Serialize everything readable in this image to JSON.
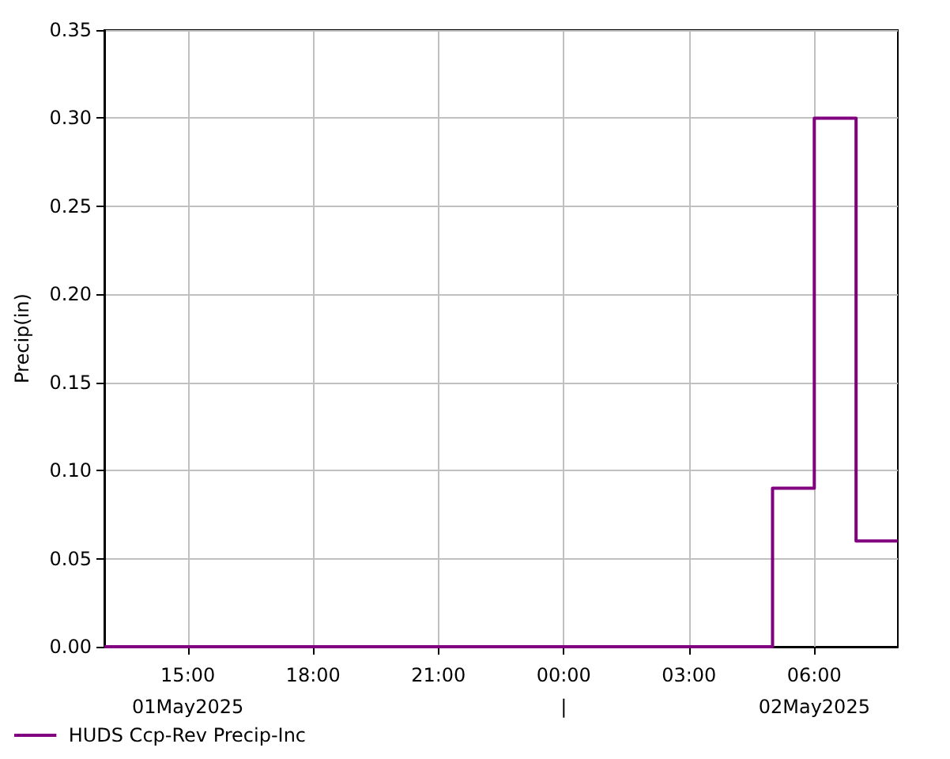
{
  "chart_data": {
    "type": "step",
    "ylabel": "Precip(in)",
    "x": [
      "2025-05-01T13:00",
      "2025-05-01T14:00",
      "2025-05-01T15:00",
      "2025-05-01T16:00",
      "2025-05-01T17:00",
      "2025-05-01T18:00",
      "2025-05-01T19:00",
      "2025-05-01T20:00",
      "2025-05-01T21:00",
      "2025-05-01T22:00",
      "2025-05-01T23:00",
      "2025-05-02T00:00",
      "2025-05-02T01:00",
      "2025-05-02T02:00",
      "2025-05-02T03:00",
      "2025-05-02T04:00",
      "2025-05-02T05:00",
      "2025-05-02T06:00",
      "2025-05-02T07:00",
      "2025-05-02T08:00"
    ],
    "series": [
      {
        "name": "HUDS Ccp-Rev Precip-Inc",
        "color": "#800080",
        "values": [
          0,
          0,
          0,
          0,
          0,
          0,
          0,
          0,
          0,
          0,
          0,
          0,
          0,
          0,
          0,
          0,
          0.09,
          0.3,
          0.06,
          0.06
        ]
      }
    ],
    "xlim": [
      "2025-05-01T13:00",
      "2025-05-02T08:00"
    ],
    "xticks": [
      {
        "value": "2025-05-01T15:00",
        "label": "15:00\n01May2025"
      },
      {
        "value": "2025-05-01T18:00",
        "label": "18:00"
      },
      {
        "value": "2025-05-01T21:00",
        "label": "21:00"
      },
      {
        "value": "2025-05-02T00:00",
        "label": "00:00\n|"
      },
      {
        "value": "2025-05-02T03:00",
        "label": "03:00"
      },
      {
        "value": "2025-05-02T06:00",
        "label": "06:00\n02May2025"
      }
    ],
    "ylim": [
      0,
      0.35
    ],
    "yticks": [
      {
        "value": 0,
        "label": "0.00"
      },
      {
        "value": 0.05,
        "label": "0.05"
      },
      {
        "value": 0.1,
        "label": "0.10"
      },
      {
        "value": 0.15,
        "label": "0.15"
      },
      {
        "value": 0.2,
        "label": "0.20"
      },
      {
        "value": 0.25,
        "label": "0.25"
      },
      {
        "value": 0.3,
        "label": "0.30"
      },
      {
        "value": 0.35,
        "label": "0.35"
      }
    ],
    "grid": true,
    "legend": "bottom left",
    "marker": "none",
    "line_style": "solid"
  }
}
